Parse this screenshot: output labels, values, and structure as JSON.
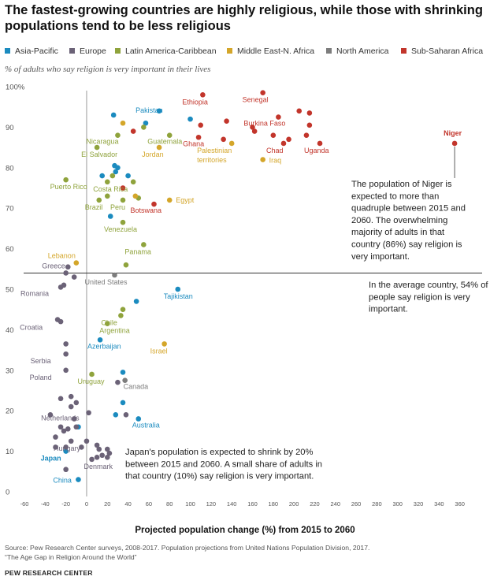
{
  "title": "The fastest-growing countries are highly religious, while those with shrinking populations tend to be less religious",
  "subtitle": "% of adults who say religion is very important in their lives",
  "legend": [
    {
      "label": "Asia-Pacific",
      "color": "#1b8bbf"
    },
    {
      "label": "Europe",
      "color": "#6b6277"
    },
    {
      "label": "Latin America-Caribbean",
      "color": "#8fa33c"
    },
    {
      "label": "Middle East-N. Africa",
      "color": "#d4a62a"
    },
    {
      "label": "North America",
      "color": "#7d7d7d"
    },
    {
      "label": "Sub-Saharan Africa",
      "color": "#c2352b"
    }
  ],
  "xlabel": "Projected population change (%) from 2015 to 2060",
  "source": "Source: Pew Research Center surveys, 2008-2017. Population projections from United Nations Population Division, 2017.",
  "report": "“The Age Gap in Religion Around the World”",
  "credit": "PEW RESEARCH CENTER",
  "chart_data": {
    "type": "scatter",
    "xlim": [
      -60,
      380
    ],
    "ylim": [
      0,
      100
    ],
    "x_ticks": [
      -60,
      -40,
      -20,
      0,
      20,
      40,
      60,
      80,
      100,
      120,
      140,
      160,
      180,
      200,
      220,
      240,
      260,
      280,
      300,
      320,
      340,
      360
    ],
    "y_ticks": [
      0,
      10,
      20,
      30,
      40,
      50,
      60,
      70,
      80,
      90,
      100
    ],
    "y_tick_labels": [
      "0",
      "10",
      "20",
      "30",
      "40",
      "50",
      "60",
      "70",
      "80",
      "90",
      "100%"
    ],
    "average_line": {
      "y": 54,
      "text": "In the average country, 54% of people say religion is very important."
    },
    "grid": false,
    "legend_position": "top",
    "annotations": [
      {
        "id": "niger",
        "text": "The population of Niger is expected to more than quadruple between 2015 and 2060. The overwhelming majority of adults in that country (86%) say religion is very important."
      },
      {
        "id": "japan",
        "text": "Japan's population is expected to shrink by 20% between 2015 and 2060. A small share of adults in that country (10%) say religion is very important."
      }
    ],
    "series": [
      {
        "name": "Asia-Pacific",
        "color": "#1b8bbf",
        "points": [
          {
            "x": 26,
            "y": 93
          },
          {
            "x": 70,
            "y": 94,
            "label": "Pakistan"
          },
          {
            "x": 57,
            "y": 91
          },
          {
            "x": 100,
            "y": 92
          },
          {
            "x": 27,
            "y": 80.5
          },
          {
            "x": 30,
            "y": 80
          },
          {
            "x": 28,
            "y": 79
          },
          {
            "x": 15,
            "y": 78
          },
          {
            "x": 40,
            "y": 78
          },
          {
            "x": 23,
            "y": 68
          },
          {
            "x": 48,
            "y": 47
          },
          {
            "x": 88,
            "y": 50,
            "label": "Tajikistan"
          },
          {
            "x": 13,
            "y": 37.5,
            "label": "Azerbaijan"
          },
          {
            "x": 35,
            "y": 29.5
          },
          {
            "x": 28,
            "y": 19
          },
          {
            "x": 35,
            "y": 22
          },
          {
            "x": 50,
            "y": 18,
            "label": "Australia"
          },
          {
            "x": -20,
            "y": 10,
            "label": "Japan"
          },
          {
            "x": -8,
            "y": 3,
            "label": "China"
          },
          {
            "x": -8,
            "y": 16
          }
        ]
      },
      {
        "name": "Europe",
        "color": "#6b6277",
        "points": [
          {
            "x": -18,
            "y": 55.5,
            "label": "Greece"
          },
          {
            "x": -20,
            "y": 54
          },
          {
            "x": -12,
            "y": 53
          },
          {
            "x": -22,
            "y": 51
          },
          {
            "x": -25,
            "y": 50.5,
            "label": "Romania"
          },
          {
            "x": -28,
            "y": 42.5,
            "label": "Croatia"
          },
          {
            "x": -25,
            "y": 42
          },
          {
            "x": -20,
            "y": 36.5
          },
          {
            "x": -20,
            "y": 34,
            "label": "Serbia"
          },
          {
            "x": -20,
            "y": 30,
            "label": "Poland"
          },
          {
            "x": -25,
            "y": 23
          },
          {
            "x": -15,
            "y": 23.5
          },
          {
            "x": -10,
            "y": 22
          },
          {
            "x": -15,
            "y": 21
          },
          {
            "x": -35,
            "y": 19
          },
          {
            "x": 2,
            "y": 19.5
          },
          {
            "x": -12,
            "y": 18,
            "label": "Netherlands"
          },
          {
            "x": -25,
            "y": 16
          },
          {
            "x": -18,
            "y": 15.5
          },
          {
            "x": -22,
            "y": 15
          },
          {
            "x": -10,
            "y": 16
          },
          {
            "x": -30,
            "y": 13.5
          },
          {
            "x": -15,
            "y": 12.5
          },
          {
            "x": 0,
            "y": 12.5,
            "label": "Hungary"
          },
          {
            "x": -30,
            "y": 11
          },
          {
            "x": -20,
            "y": 11
          },
          {
            "x": -5,
            "y": 11
          },
          {
            "x": 10,
            "y": 11.5
          },
          {
            "x": 12,
            "y": 10.5
          },
          {
            "x": 20,
            "y": 10.5
          },
          {
            "x": 15,
            "y": 9
          },
          {
            "x": 10,
            "y": 8.5
          },
          {
            "x": 20,
            "y": 8.5
          },
          {
            "x": 22,
            "y": 9.5
          },
          {
            "x": 5,
            "y": 8,
            "label": "Denmark"
          },
          {
            "x": -20,
            "y": 5.5
          },
          {
            "x": 30,
            "y": 27
          },
          {
            "x": 38,
            "y": 19
          }
        ]
      },
      {
        "name": "Latin America-Caribbean",
        "color": "#8fa33c",
        "points": [
          {
            "x": 30,
            "y": 88,
            "label": "Nicaragua"
          },
          {
            "x": 55,
            "y": 90
          },
          {
            "x": 80,
            "y": 88,
            "label": "Guatemala"
          },
          {
            "x": 10,
            "y": 85,
            "label": "El Salvador"
          },
          {
            "x": 25,
            "y": 78
          },
          {
            "x": -20,
            "y": 77,
            "label": "Puerto Rico"
          },
          {
            "x": 20,
            "y": 76.5,
            "label": "Costa Rica"
          },
          {
            "x": 45,
            "y": 76.5
          },
          {
            "x": 20,
            "y": 73
          },
          {
            "x": 12,
            "y": 72,
            "label": "Brazil"
          },
          {
            "x": 35,
            "y": 72,
            "label": "Peru"
          },
          {
            "x": 50,
            "y": 72.5
          },
          {
            "x": 35,
            "y": 66.5,
            "label": "Venezuela"
          },
          {
            "x": 55,
            "y": 61,
            "label": "Panama"
          },
          {
            "x": 38,
            "y": 56
          },
          {
            "x": 35,
            "y": 45
          },
          {
            "x": 33,
            "y": 43.5,
            "label": "Chile"
          },
          {
            "x": 20,
            "y": 41.5,
            "label": "Argentina"
          },
          {
            "x": 5,
            "y": 29,
            "label": "Uruguay"
          }
        ]
      },
      {
        "name": "Middle East-N. Africa",
        "color": "#d4a62a",
        "points": [
          {
            "x": 35,
            "y": 91
          },
          {
            "x": 70,
            "y": 85,
            "label": "Jordan"
          },
          {
            "x": 47,
            "y": 73,
            "label": ""
          },
          {
            "x": 80,
            "y": 72,
            "label": "Egypt"
          },
          {
            "x": -10,
            "y": 56.5,
            "label": "Lebanon"
          },
          {
            "x": 75,
            "y": 36.5,
            "label": "Israel"
          },
          {
            "x": 140,
            "y": 86,
            "label": "Palestinian territories"
          },
          {
            "x": 170,
            "y": 82,
            "label": "Iraq"
          }
        ]
      },
      {
        "name": "North America",
        "color": "#7d7d7d",
        "points": [
          {
            "x": 27,
            "y": 53.5,
            "label": "United States"
          },
          {
            "x": 37,
            "y": 27.5,
            "label": "Canada"
          }
        ]
      },
      {
        "name": "Sub-Saharan Africa",
        "color": "#c2352b",
        "points": [
          {
            "x": 112,
            "y": 98,
            "label": "Ethiopia"
          },
          {
            "x": 170,
            "y": 98.5,
            "label": "Senegal"
          },
          {
            "x": 45,
            "y": 89
          },
          {
            "x": 35,
            "y": 75,
            "label": ""
          },
          {
            "x": 65,
            "y": 71,
            "label": "Botswana"
          },
          {
            "x": 110,
            "y": 90.5
          },
          {
            "x": 108,
            "y": 87.5,
            "label": "Ghana"
          },
          {
            "x": 135,
            "y": 91.5
          },
          {
            "x": 160,
            "y": 90
          },
          {
            "x": 162,
            "y": 89
          },
          {
            "x": 185,
            "y": 92.5,
            "label": "Burkina Faso"
          },
          {
            "x": 205,
            "y": 94
          },
          {
            "x": 215,
            "y": 93.5
          },
          {
            "x": 215,
            "y": 90.5
          },
          {
            "x": 132,
            "y": 87
          },
          {
            "x": 180,
            "y": 88
          },
          {
            "x": 195,
            "y": 87
          },
          {
            "x": 212,
            "y": 88
          },
          {
            "x": 225,
            "y": 86,
            "label": "Uganda"
          },
          {
            "x": 190,
            "y": 86,
            "label": "Chad"
          },
          {
            "x": 355,
            "y": 86,
            "label": "Niger"
          }
        ]
      }
    ]
  }
}
